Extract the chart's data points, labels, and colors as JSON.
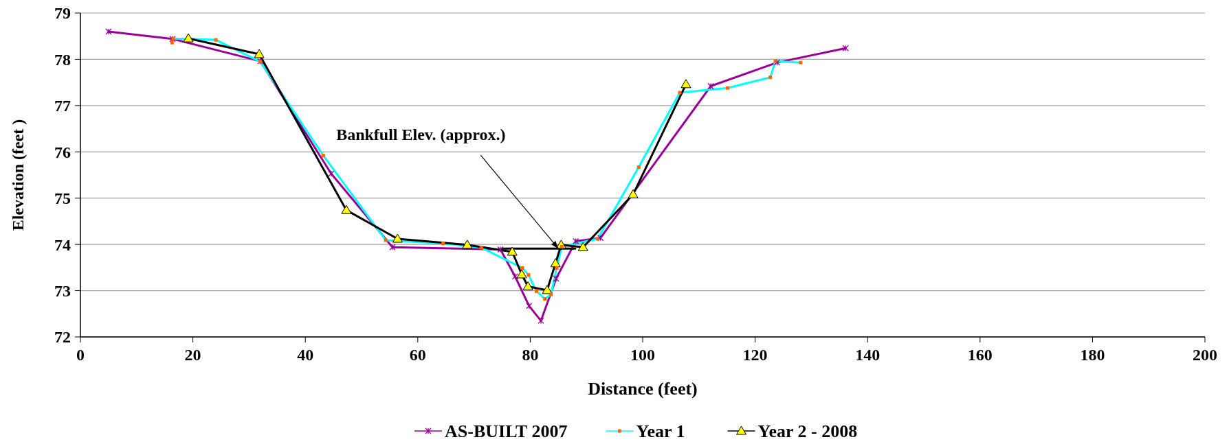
{
  "chart_data": {
    "type": "line",
    "xlabel": "Distance (feet)",
    "ylabel": "Elevation (feet )",
    "xlim": [
      0,
      200
    ],
    "xticks": [
      0,
      20,
      40,
      60,
      80,
      100,
      120,
      140,
      160,
      180,
      200
    ],
    "ylim": [
      72,
      79
    ],
    "yticks": [
      72,
      73,
      74,
      75,
      76,
      77,
      78,
      79
    ],
    "grid": "y",
    "legend": "bottom",
    "line_style": "solid",
    "annotations": [
      {
        "text": "Bankfull Elev. (approx.)",
        "x": 85,
        "y": 73.91
      }
    ],
    "series": [
      {
        "name": "AS-BUILT 2007",
        "color": "#990099",
        "marker": "cross",
        "x": [
          5.0,
          16.4,
          32.0,
          44.6,
          55.5,
          74.7,
          77.3,
          79.8,
          81.9,
          84.6,
          88.1,
          92.5,
          112.1,
          123.9,
          136.1
        ],
        "values": [
          78.6,
          78.44,
          77.96,
          75.53,
          73.94,
          73.89,
          73.31,
          72.67,
          72.35,
          73.26,
          74.07,
          74.14,
          77.42,
          77.93,
          78.24
        ]
      },
      {
        "name": "Year 1",
        "color": "#00ffff",
        "marker": "square",
        "x": [
          16.3,
          16.5,
          24.1,
          32.0,
          43.2,
          54.3,
          64.5,
          71.3,
          78.6,
          79.7,
          81.1,
          82.6,
          83.7,
          84.7,
          85.6,
          92.0,
          99.3,
          106.6,
          115.1,
          122.7,
          123.6,
          128.1
        ],
        "values": [
          78.36,
          78.45,
          78.42,
          77.95,
          75.92,
          74.09,
          74.02,
          73.93,
          73.49,
          73.34,
          72.99,
          72.82,
          72.92,
          73.49,
          73.95,
          74.12,
          75.67,
          77.28,
          77.38,
          77.61,
          77.96,
          77.93
        ]
      },
      {
        "name": "Year 2 - 2008",
        "color": "#000000",
        "marker": "triangle",
        "x": [
          19.2,
          31.8,
          47.3,
          56.4,
          68.8,
          76.8,
          78.5,
          79.6,
          83.0,
          84.5,
          85.5,
          89.4,
          98.3,
          107.7
        ],
        "values": [
          78.45,
          78.11,
          74.74,
          74.12,
          73.99,
          73.84,
          73.35,
          73.09,
          73.01,
          73.59,
          73.99,
          73.94,
          75.08,
          77.46
        ]
      },
      {
        "color": "#000000",
        "marker": "none",
        "x": [
          75.0,
          88.0
        ],
        "values": [
          73.91,
          73.91
        ]
      }
    ]
  }
}
